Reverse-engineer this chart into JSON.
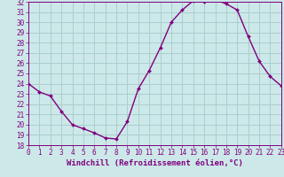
{
  "x": [
    0,
    1,
    2,
    3,
    4,
    5,
    6,
    7,
    8,
    9,
    10,
    11,
    12,
    13,
    14,
    15,
    16,
    17,
    18,
    19,
    20,
    21,
    22,
    23
  ],
  "y": [
    24.0,
    23.2,
    22.8,
    21.3,
    20.0,
    19.6,
    19.2,
    18.7,
    18.6,
    20.3,
    23.5,
    25.3,
    27.5,
    30.0,
    31.2,
    32.1,
    32.0,
    32.2,
    31.8,
    31.2,
    28.6,
    26.2,
    24.7,
    23.8
  ],
  "xlim": [
    0,
    23
  ],
  "ylim": [
    18,
    32
  ],
  "yticks": [
    18,
    19,
    20,
    21,
    22,
    23,
    24,
    25,
    26,
    27,
    28,
    29,
    30,
    31,
    32
  ],
  "xticks": [
    0,
    1,
    2,
    3,
    4,
    5,
    6,
    7,
    8,
    9,
    10,
    11,
    12,
    13,
    14,
    15,
    16,
    17,
    18,
    19,
    20,
    21,
    22,
    23
  ],
  "xlabel": "Windchill (Refroidissement éolien,°C)",
  "line_color": "#800080",
  "marker_color": "#800080",
  "bg_color": "#cce8e8",
  "grid_color": "#aacece",
  "axis_color": "#800080",
  "tick_label_color": "#800080",
  "xlabel_color": "#800080",
  "tick_fontsize": 5.5,
  "xlabel_fontsize": 6.5
}
